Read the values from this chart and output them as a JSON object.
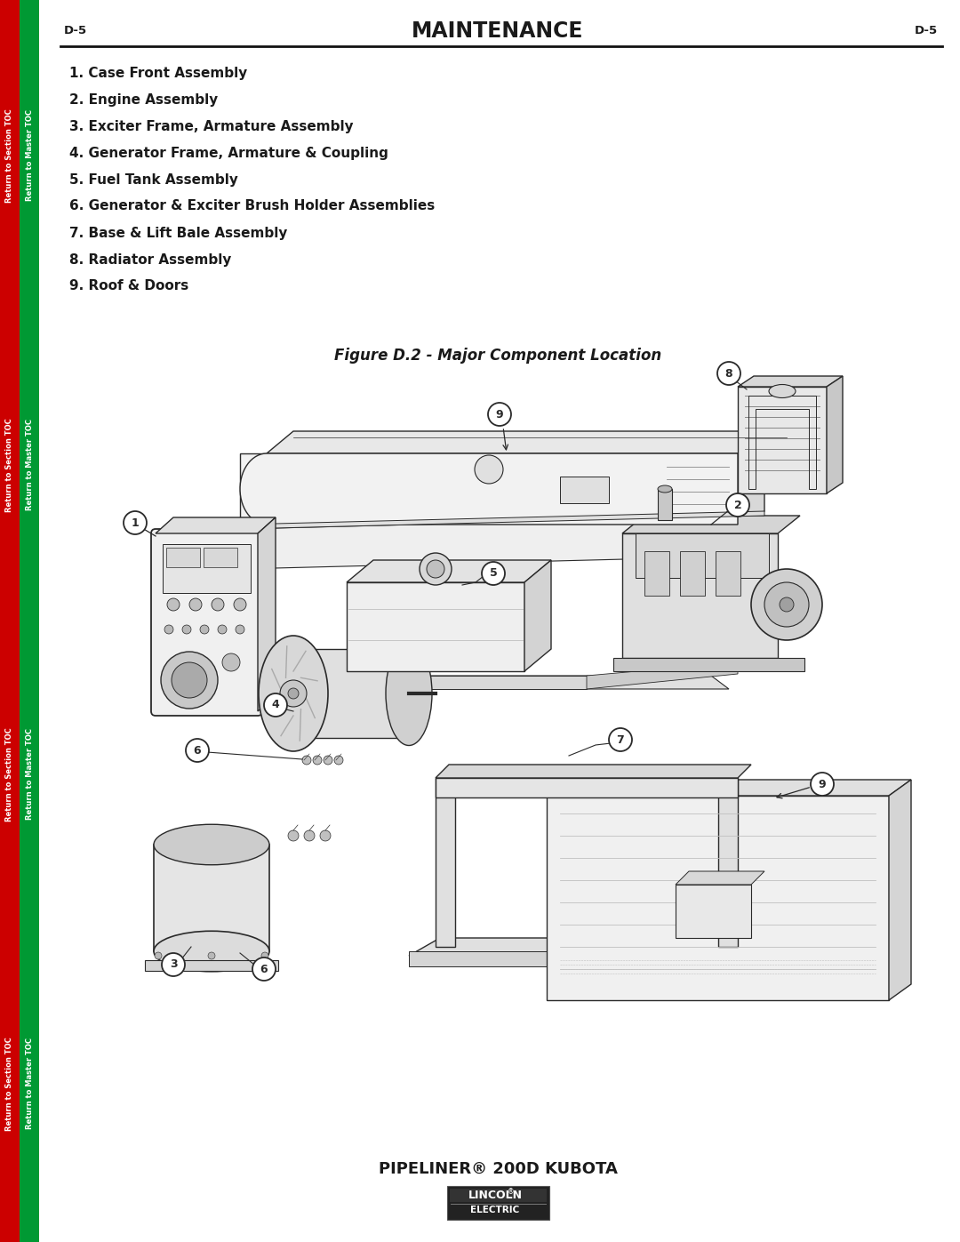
{
  "title": "MAINTENANCE",
  "page_num": "D-5",
  "figure_title": "Figure D.2 - Major Component Location",
  "items": [
    "1. Case Front Assembly",
    "2. Engine Assembly",
    "3. Exciter Frame, Armature Assembly",
    "4. Generator Frame, Armature & Coupling",
    "5. Fuel Tank Assembly",
    "6. Generator & Exciter Brush Holder Assemblies",
    "7. Base & Lift Bale Assembly",
    "8. Radiator Assembly",
    "9. Roof & Doors"
  ],
  "bottom_text": "PIPELINER® 200D KUBOTA",
  "bg_color": "#ffffff",
  "text_color": "#1a1a1a",
  "sidebar_red": "#cc0000",
  "sidebar_green": "#009933",
  "sidebar_red_text": "Return to Section TOC",
  "sidebar_green_text": "Return to Master TOC",
  "line_color": "#2a2a2a",
  "lw": 1.0
}
